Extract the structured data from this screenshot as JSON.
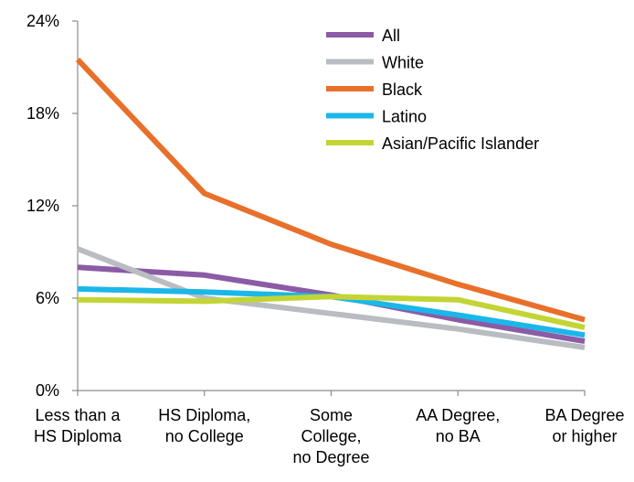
{
  "chart_data": {
    "type": "line",
    "title": "",
    "xlabel": "",
    "ylabel": "",
    "categories": [
      [
        "Less than a",
        "HS Diploma"
      ],
      [
        "HS Diploma,",
        "no College"
      ],
      [
        "Some",
        "College,",
        "no Degree"
      ],
      [
        "AA Degree,",
        "no BA"
      ],
      [
        "BA Degree",
        "or higher"
      ]
    ],
    "ylim": [
      0,
      24
    ],
    "yticks": [
      {
        "value": 0,
        "label": "0%"
      },
      {
        "value": 6,
        "label": "6%"
      },
      {
        "value": 12,
        "label": "12%"
      },
      {
        "value": 18,
        "label": "18%"
      },
      {
        "value": 24,
        "label": "24%"
      }
    ],
    "grid": false,
    "legend_position": "top-right",
    "series": [
      {
        "name": "All",
        "color": "#8B5BA6",
        "values": [
          8.0,
          7.5,
          6.2,
          4.6,
          3.2
        ]
      },
      {
        "name": "White",
        "color": "#B9BCC0",
        "values": [
          9.2,
          6.0,
          5.0,
          4.0,
          2.8
        ]
      },
      {
        "name": "Black",
        "color": "#E8702A",
        "values": [
          21.5,
          12.8,
          9.5,
          6.9,
          4.6
        ]
      },
      {
        "name": "Latino",
        "color": "#1BB7E8",
        "values": [
          6.6,
          6.4,
          6.1,
          4.9,
          3.6
        ]
      },
      {
        "name": "Asian/Pacific Islander",
        "color": "#C3D534",
        "values": [
          5.9,
          5.8,
          6.1,
          5.9,
          4.1
        ]
      }
    ]
  }
}
